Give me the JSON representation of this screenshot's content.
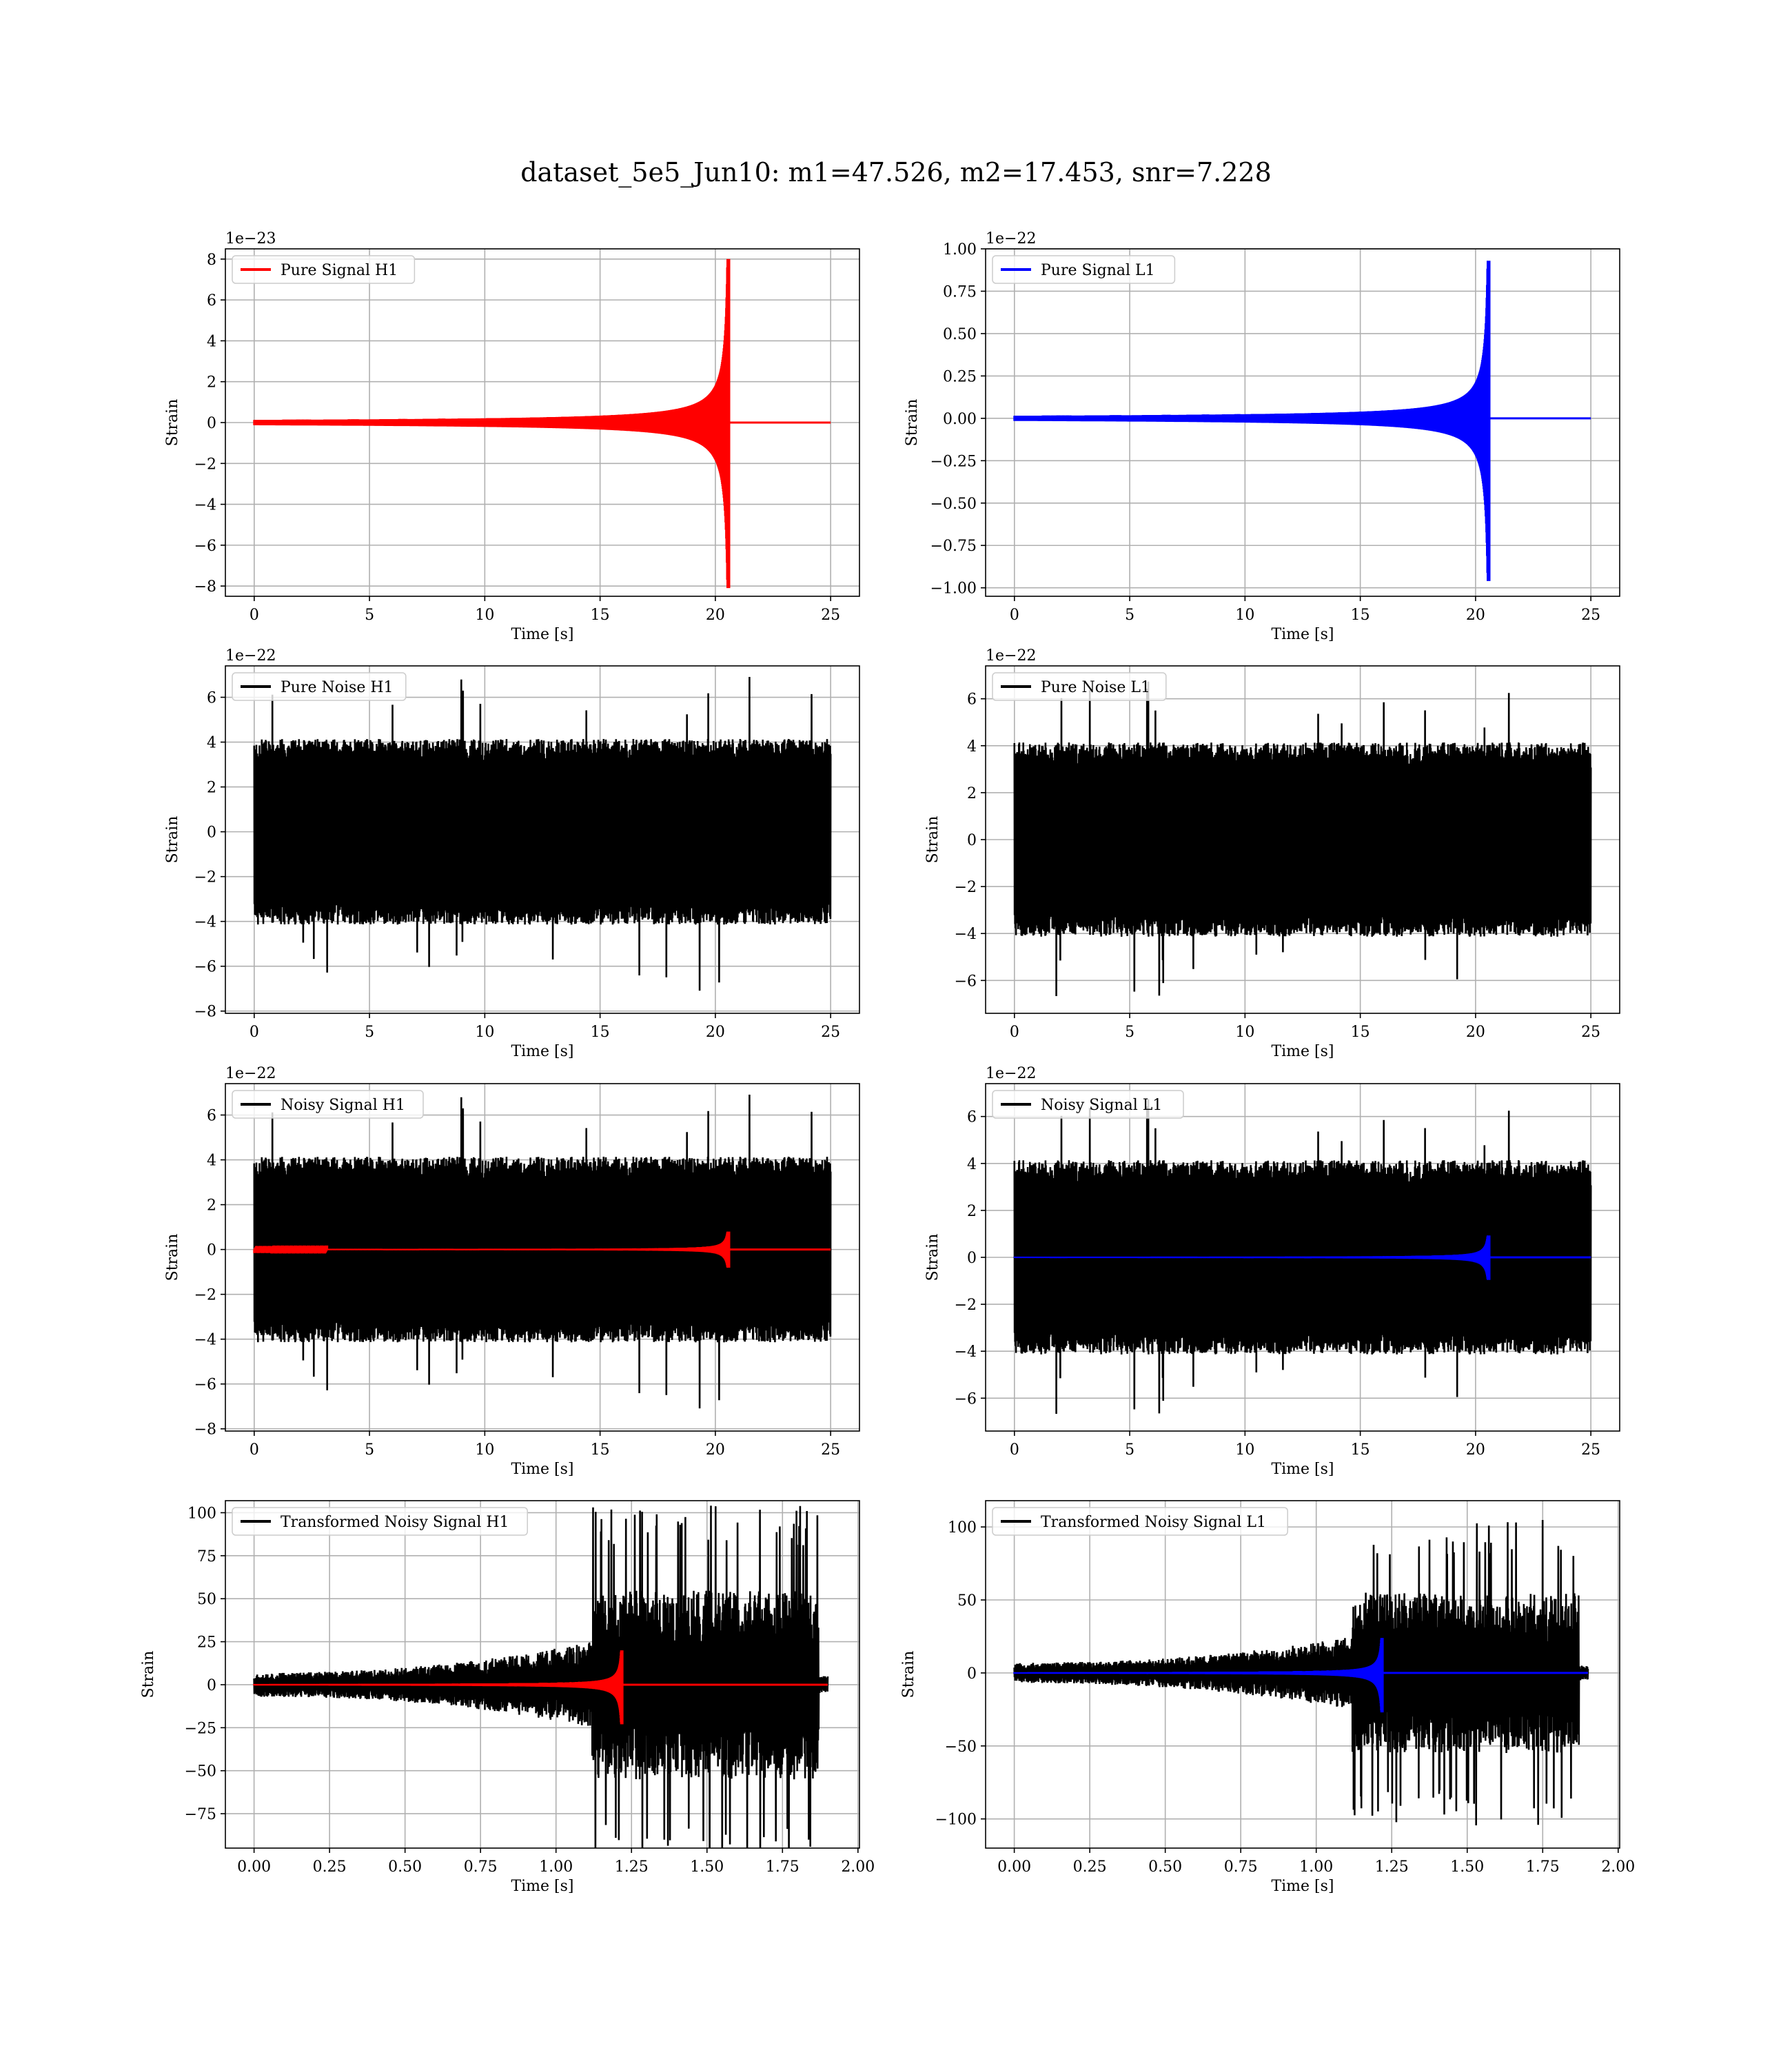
{
  "figure": {
    "title": "dataset_5e5_Jun10: m1=47.526, m2=17.453, snr=7.228"
  },
  "colors": {
    "h1_signal": "#ff0000",
    "l1_signal": "#0000ff",
    "noise": "#000000",
    "grid": "#b0b0b0"
  },
  "chart_data": [
    {
      "type": "line",
      "panel": "pure-signal-h1",
      "legend": [
        "Pure Signal H1"
      ],
      "xlabel": "Time [s]",
      "ylabel": "Strain",
      "offset_text": "1e−23",
      "xlim": [
        -1.25,
        26.25
      ],
      "ylim": [
        -8.5,
        8.5
      ],
      "xticks": [
        0,
        5,
        10,
        15,
        20,
        25
      ],
      "yticks": [
        -8,
        -6,
        -4,
        -2,
        0,
        2,
        4,
        6,
        8
      ],
      "grid": true,
      "legend_loc": "upper left",
      "series": [
        {
          "name": "Pure Signal H1",
          "color": "#ff0000",
          "kind": "chirp",
          "x_start": 0,
          "x_end": 25,
          "merger_time": 20.6,
          "peak_pos": 8.0,
          "peak_neg": -8.1
        }
      ]
    },
    {
      "type": "line",
      "panel": "pure-signal-l1",
      "legend": [
        "Pure Signal L1"
      ],
      "xlabel": "Time [s]",
      "ylabel": "Strain",
      "offset_text": "1e−22",
      "xlim": [
        -1.25,
        26.25
      ],
      "ylim": [
        -1.05,
        1.0
      ],
      "xticks": [
        0,
        5,
        10,
        15,
        20,
        25
      ],
      "yticks": [
        -1.0,
        -0.75,
        -0.5,
        -0.25,
        0.0,
        0.25,
        0.5,
        0.75,
        1.0
      ],
      "yticklabels": [
        "−1.00",
        "−0.75",
        "−0.50",
        "−0.25",
        "0.00",
        "0.25",
        "0.50",
        "0.75",
        "1.00"
      ],
      "grid": true,
      "legend_loc": "upper left",
      "series": [
        {
          "name": "Pure Signal L1",
          "color": "#0000ff",
          "kind": "chirp",
          "x_start": 0,
          "x_end": 25,
          "merger_time": 20.6,
          "peak_pos": 0.93,
          "peak_neg": -0.96
        }
      ]
    },
    {
      "type": "line",
      "panel": "pure-noise-h1",
      "legend": [
        "Pure Noise H1"
      ],
      "xlabel": "Time [s]",
      "ylabel": "Strain",
      "offset_text": "1e−22",
      "xlim": [
        -1.25,
        26.25
      ],
      "ylim": [
        -8.1,
        7.4
      ],
      "xticks": [
        0,
        5,
        10,
        15,
        20,
        25
      ],
      "yticks": [
        -8,
        -6,
        -4,
        -2,
        0,
        2,
        4,
        6
      ],
      "grid": true,
      "legend_loc": "upper left",
      "series": [
        {
          "name": "Pure Noise H1",
          "color": "#000000",
          "kind": "noise",
          "x_start": 0,
          "x_end": 25,
          "band": 3.6,
          "spike_max": 6.8,
          "spike_min": -7.5,
          "seed": 11
        }
      ]
    },
    {
      "type": "line",
      "panel": "pure-noise-l1",
      "legend": [
        "Pure Noise L1"
      ],
      "xlabel": "Time [s]",
      "ylabel": "Strain",
      "offset_text": "1e−22",
      "xlim": [
        -1.25,
        26.25
      ],
      "ylim": [
        -7.4,
        7.4
      ],
      "xticks": [
        0,
        5,
        10,
        15,
        20,
        25
      ],
      "yticks": [
        -6,
        -4,
        -2,
        0,
        2,
        4,
        6
      ],
      "grid": true,
      "legend_loc": "upper left",
      "series": [
        {
          "name": "Pure Noise L1",
          "color": "#000000",
          "kind": "noise",
          "x_start": 0,
          "x_end": 25,
          "band": 3.6,
          "spike_max": 6.7,
          "spike_min": -6.9,
          "seed": 23
        }
      ]
    },
    {
      "type": "line",
      "panel": "noisy-signal-h1",
      "legend": [
        "Noisy Signal H1"
      ],
      "xlabel": "Time [s]",
      "ylabel": "Strain",
      "offset_text": "1e−22",
      "xlim": [
        -1.25,
        26.25
      ],
      "ylim": [
        -8.1,
        7.4
      ],
      "xticks": [
        0,
        5,
        10,
        15,
        20,
        25
      ],
      "yticks": [
        -8,
        -6,
        -4,
        -2,
        0,
        2,
        4,
        6
      ],
      "grid": true,
      "legend_loc": "upper left",
      "series": [
        {
          "name": "Noisy Signal H1",
          "color": "#000000",
          "kind": "noise",
          "x_start": 0,
          "x_end": 25,
          "band": 3.6,
          "spike_max": 6.8,
          "spike_min": -7.5,
          "seed": 11
        },
        {
          "color": "#ff0000",
          "kind": "chirp",
          "x_start": 0,
          "x_end": 25,
          "merger_time": 20.6,
          "peak_pos": 0.8,
          "peak_neg": -0.81
        }
      ]
    },
    {
      "type": "line",
      "panel": "noisy-signal-l1",
      "legend": [
        "Noisy Signal L1"
      ],
      "xlabel": "Time [s]",
      "ylabel": "Strain",
      "offset_text": "1e−22",
      "xlim": [
        -1.25,
        26.25
      ],
      "ylim": [
        -7.4,
        7.4
      ],
      "xticks": [
        0,
        5,
        10,
        15,
        20,
        25
      ],
      "yticks": [
        -6,
        -4,
        -2,
        0,
        2,
        4,
        6
      ],
      "grid": true,
      "legend_loc": "upper left",
      "series": [
        {
          "name": "Noisy Signal L1",
          "color": "#000000",
          "kind": "noise",
          "x_start": 0,
          "x_end": 25,
          "band": 3.6,
          "spike_max": 6.7,
          "spike_min": -6.9,
          "seed": 23
        },
        {
          "color": "#0000ff",
          "kind": "chirp",
          "x_start": 0,
          "x_end": 25,
          "merger_time": 20.6,
          "peak_pos": 0.93,
          "peak_neg": -0.96
        }
      ]
    },
    {
      "type": "line",
      "panel": "transformed-h1",
      "legend": [
        "Transformed Noisy Signal H1"
      ],
      "xlabel": "Time [s]",
      "ylabel": "Strain",
      "xlim": [
        -0.095,
        2.005
      ],
      "ylim": [
        -95,
        107
      ],
      "xticks": [
        0.0,
        0.25,
        0.5,
        0.75,
        1.0,
        1.25,
        1.5,
        1.75,
        2.0
      ],
      "xticklabels": [
        "0.00",
        "0.25",
        "0.50",
        "0.75",
        "1.00",
        "1.25",
        "1.50",
        "1.75",
        "2.00"
      ],
      "yticks": [
        -75,
        -50,
        -25,
        0,
        25,
        50,
        75,
        100
      ],
      "grid": true,
      "legend_loc": "upper left",
      "series": [
        {
          "name": "Transformed Noisy Signal H1",
          "color": "#000000",
          "kind": "whitened",
          "x_start": 0,
          "x_end": 1.9,
          "jump_time": 1.12,
          "end_time": 1.87,
          "seed": 37
        },
        {
          "color": "#ff0000",
          "kind": "chirp",
          "x_start": 0,
          "x_end": 1.9,
          "merger_time": 1.22,
          "peak_pos": 20,
          "peak_neg": -23
        }
      ]
    },
    {
      "type": "line",
      "panel": "transformed-l1",
      "legend": [
        "Transformed Noisy Signal L1"
      ],
      "xlabel": "Time [s]",
      "ylabel": "Strain",
      "xlim": [
        -0.095,
        2.005
      ],
      "ylim": [
        -120,
        118
      ],
      "xticks": [
        0.0,
        0.25,
        0.5,
        0.75,
        1.0,
        1.25,
        1.5,
        1.75,
        2.0
      ],
      "xticklabels": [
        "0.00",
        "0.25",
        "0.50",
        "0.75",
        "1.00",
        "1.25",
        "1.50",
        "1.75",
        "2.00"
      ],
      "yticks": [
        -100,
        -50,
        0,
        50,
        100
      ],
      "grid": true,
      "legend_loc": "upper left",
      "series": [
        {
          "name": "Transformed Noisy Signal L1",
          "color": "#000000",
          "kind": "whitened",
          "x_start": 0,
          "x_end": 1.9,
          "jump_time": 1.12,
          "end_time": 1.87,
          "seed": 53
        },
        {
          "color": "#0000ff",
          "kind": "chirp",
          "x_start": 0,
          "x_end": 1.9,
          "merger_time": 1.22,
          "peak_pos": 24,
          "peak_neg": -27
        }
      ]
    }
  ]
}
